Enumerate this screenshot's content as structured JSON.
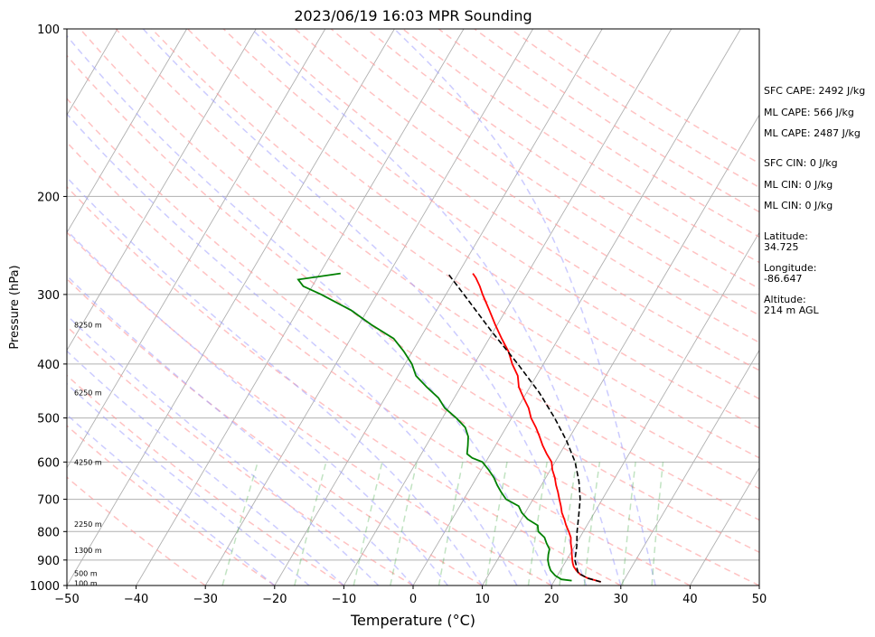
{
  "chart_data": {
    "type": "line",
    "title": "2023/06/19 16:03 MPR Sounding",
    "xlabel": "Temperature (°C)",
    "ylabel": "Pressure (hPa)",
    "xlim": [
      -50,
      50
    ],
    "ylim": [
      1000,
      100
    ],
    "y_scale": "log",
    "x_ticks": [
      "−50",
      "−40",
      "−30",
      "−20",
      "−10",
      "0",
      "10",
      "20",
      "30",
      "40",
      "50"
    ],
    "y_ticks": [
      "100",
      "200",
      "300",
      "400",
      "500",
      "600",
      "700",
      "800",
      "900",
      "1000"
    ],
    "height_labels": [
      {
        "p": 340,
        "text": "8250 m"
      },
      {
        "p": 450,
        "text": "6250 m"
      },
      {
        "p": 600,
        "text": "4250 m"
      },
      {
        "p": 775,
        "text": "2250 m"
      },
      {
        "p": 865,
        "text": "1300 m"
      },
      {
        "p": 950,
        "text": "500 m"
      },
      {
        "p": 990,
        "text": "100 m"
      }
    ],
    "series": [
      {
        "color": "#ff0000",
        "p": [
          985,
          970,
          955,
          940,
          925,
          910,
          895,
          880,
          860,
          840,
          820,
          800,
          780,
          760,
          740,
          720,
          700,
          680,
          660,
          640,
          620,
          600,
          580,
          560,
          540,
          520,
          500,
          480,
          460,
          440,
          420,
          400,
          380,
          360,
          340,
          320,
          300,
          290,
          280,
          275
        ],
        "t": [
          26.8,
          24.6,
          23.2,
          22.3,
          21.6,
          21.1,
          20.7,
          20.3,
          19.8,
          19.2,
          18.7,
          17.9,
          17.0,
          16.2,
          15.3,
          14.6,
          13.8,
          13.0,
          12.1,
          11.3,
          10.3,
          9.5,
          8.1,
          6.8,
          5.6,
          4.3,
          2.8,
          1.6,
          0.0,
          -1.6,
          -2.7,
          -4.5,
          -6.1,
          -8.2,
          -10.3,
          -12.4,
          -14.7,
          -15.8,
          -17.1,
          -17.9
        ]
      },
      {
        "color": "#008000",
        "p": [
          980,
          975,
          960,
          940,
          920,
          900,
          880,
          860,
          840,
          820,
          800,
          780,
          760,
          740,
          720,
          700,
          680,
          660,
          640,
          620,
          600,
          590,
          580,
          560,
          540,
          520,
          500,
          480,
          460,
          440,
          420,
          400,
          380,
          360,
          340,
          320,
          300,
          290,
          282,
          275
        ],
        "t": [
          22.5,
          20.9,
          19.7,
          18.6,
          17.9,
          17.3,
          16.9,
          16.6,
          15.7,
          14.9,
          13.5,
          12.9,
          10.9,
          9.5,
          8.5,
          6.1,
          4.8,
          3.6,
          2.5,
          1.1,
          -0.5,
          -2.3,
          -3.4,
          -4.0,
          -4.7,
          -5.9,
          -8.0,
          -10.5,
          -12.3,
          -14.9,
          -17.4,
          -19.0,
          -21.2,
          -23.8,
          -28.2,
          -32.4,
          -38.0,
          -41.3,
          -42.6,
          -37.0
        ]
      },
      {
        "color": "#000000",
        "dashed": true,
        "p": [
          985,
          970,
          950,
          925,
          900,
          850,
          800,
          750,
          700,
          650,
          600,
          550,
          500,
          450,
          400,
          350,
          300,
          275
        ],
        "t": [
          26.8,
          24.6,
          22.8,
          22.0,
          21.2,
          20.3,
          19.1,
          18.0,
          16.8,
          15.1,
          12.9,
          9.9,
          6.2,
          1.8,
          -3.7,
          -10.2,
          -17.4,
          -21.5
        ]
      }
    ]
  },
  "annotations": {
    "sfc_cape": "SFC CAPE: 2492 J/kg",
    "ml_cape_1": "ML CAPE: 566 J/kg",
    "ml_cape_2": "ML CAPE: 2487 J/kg",
    "sfc_cin": "SFC CIN: 0 J/kg",
    "ml_cin_1": "ML CIN: 0 J/kg",
    "ml_cin_2": "ML CIN: 0 J/kg",
    "latitude": "Latitude:\n34.725",
    "longitude": "Longitude:\n-86.647",
    "altitude": "Altitude:\n214 m AGL"
  },
  "colors": {
    "temperature": "#ff0000",
    "dewpoint": "#008000",
    "parcel": "#000000",
    "isotherm": "#b0b0b0",
    "dry_adiabat": "#ff9a9a",
    "moist_adiabat": "#9a9aff",
    "mixing_ratio": "#4caf50"
  }
}
